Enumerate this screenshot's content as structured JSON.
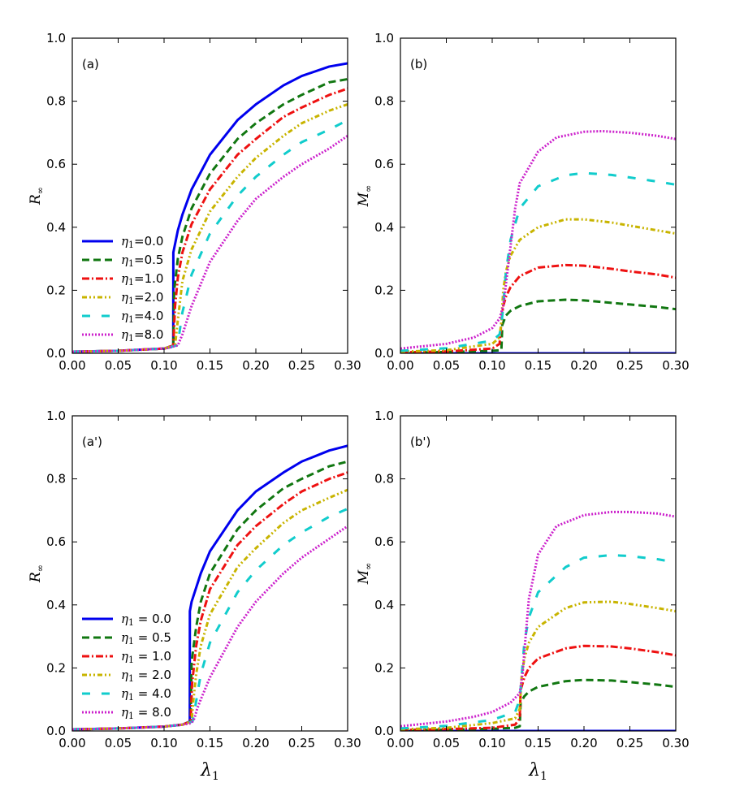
{
  "chart_data": [
    {
      "type": "line",
      "panel": "(a)",
      "xlabel": "",
      "ylabel": "R∞",
      "xlim": [
        0,
        0.3
      ],
      "ylim": [
        0,
        1.0
      ],
      "xticks": [
        "0.00",
        "0.05",
        "0.10",
        "0.15",
        "0.20",
        "0.25",
        "0.30"
      ],
      "yticks": [
        "0.0",
        "0.2",
        "0.4",
        "0.6",
        "0.8",
        "1.0"
      ],
      "legend": {
        "position": "lower-left",
        "sep": "="
      },
      "series": [
        {
          "name": "η1=0.0",
          "eta": "0.0",
          "style": "solid",
          "color": "#0000ee",
          "x": [
            0,
            0.05,
            0.1,
            0.108,
            0.11,
            0.1101,
            0.115,
            0.12,
            0.13,
            0.15,
            0.18,
            0.2,
            0.23,
            0.25,
            0.28,
            0.3
          ],
          "y": [
            0.005,
            0.008,
            0.015,
            0.02,
            0.025,
            0.32,
            0.39,
            0.44,
            0.52,
            0.63,
            0.74,
            0.79,
            0.85,
            0.88,
            0.91,
            0.92
          ]
        },
        {
          "name": "η1=0.5",
          "eta": "0.5",
          "style": "dashed",
          "color": "#117711",
          "x": [
            0,
            0.05,
            0.1,
            0.11,
            0.111,
            0.115,
            0.12,
            0.13,
            0.15,
            0.18,
            0.2,
            0.23,
            0.25,
            0.28,
            0.3
          ],
          "y": [
            0.005,
            0.008,
            0.015,
            0.025,
            0.2,
            0.3,
            0.37,
            0.46,
            0.57,
            0.68,
            0.73,
            0.79,
            0.82,
            0.86,
            0.87
          ]
        },
        {
          "name": "η1=1.0",
          "eta": "1.0",
          "style": "dashdot",
          "color": "#ee1111",
          "x": [
            0,
            0.05,
            0.1,
            0.11,
            0.112,
            0.115,
            0.12,
            0.13,
            0.15,
            0.18,
            0.2,
            0.23,
            0.25,
            0.28,
            0.3
          ],
          "y": [
            0.005,
            0.008,
            0.015,
            0.025,
            0.15,
            0.24,
            0.32,
            0.41,
            0.52,
            0.63,
            0.68,
            0.75,
            0.78,
            0.82,
            0.84
          ]
        },
        {
          "name": "η1=2.0",
          "eta": "2.0",
          "style": "dashdotdot",
          "color": "#c8b400",
          "x": [
            0,
            0.05,
            0.1,
            0.112,
            0.114,
            0.118,
            0.12,
            0.13,
            0.15,
            0.18,
            0.2,
            0.23,
            0.25,
            0.28,
            0.3
          ],
          "y": [
            0.005,
            0.008,
            0.015,
            0.025,
            0.08,
            0.18,
            0.23,
            0.33,
            0.45,
            0.56,
            0.62,
            0.69,
            0.73,
            0.77,
            0.79
          ]
        },
        {
          "name": "η1=4.0",
          "eta": "4.0",
          "style": "longdash",
          "color": "#11cccc",
          "x": [
            0,
            0.05,
            0.1,
            0.114,
            0.116,
            0.12,
            0.13,
            0.15,
            0.18,
            0.2,
            0.23,
            0.25,
            0.28,
            0.3
          ],
          "y": [
            0.005,
            0.008,
            0.015,
            0.025,
            0.05,
            0.13,
            0.25,
            0.38,
            0.5,
            0.56,
            0.63,
            0.67,
            0.71,
            0.74
          ]
        },
        {
          "name": "η1=8.0",
          "eta": "8.0",
          "style": "dotted",
          "color": "#cc22cc",
          "x": [
            0,
            0.05,
            0.1,
            0.115,
            0.12,
            0.13,
            0.15,
            0.18,
            0.2,
            0.23,
            0.25,
            0.28,
            0.3
          ],
          "y": [
            0.005,
            0.008,
            0.015,
            0.025,
            0.06,
            0.15,
            0.29,
            0.42,
            0.49,
            0.56,
            0.6,
            0.65,
            0.69
          ]
        }
      ]
    },
    {
      "type": "line",
      "panel": "(b)",
      "xlabel": "",
      "ylabel": "M∞",
      "xlim": [
        0,
        0.3
      ],
      "ylim": [
        0,
        1.0
      ],
      "xticks": [
        "0.00",
        "0.05",
        "0.10",
        "0.15",
        "0.20",
        "0.25",
        "0.30"
      ],
      "yticks": [
        "0.0",
        "0.2",
        "0.4",
        "0.6",
        "0.8",
        "1.0"
      ],
      "series": [
        {
          "name": "η1=0.0",
          "eta": "0.0",
          "style": "solid",
          "color": "#0000ee",
          "x": [
            0,
            0.3
          ],
          "y": [
            0.0,
            0.0
          ]
        },
        {
          "name": "η1=0.5",
          "eta": "0.5",
          "style": "dashed",
          "color": "#117711",
          "x": [
            0,
            0.05,
            0.1,
            0.11,
            0.111,
            0.115,
            0.12,
            0.13,
            0.15,
            0.18,
            0.2,
            0.23,
            0.25,
            0.28,
            0.3
          ],
          "y": [
            0.002,
            0.004,
            0.008,
            0.01,
            0.09,
            0.12,
            0.135,
            0.15,
            0.165,
            0.17,
            0.168,
            0.16,
            0.155,
            0.147,
            0.14
          ]
        },
        {
          "name": "η1=1.0",
          "eta": "1.0",
          "style": "dashdot",
          "color": "#ee1111",
          "x": [
            0,
            0.05,
            0.1,
            0.108,
            0.11,
            0.112,
            0.115,
            0.12,
            0.13,
            0.15,
            0.18,
            0.2,
            0.23,
            0.25,
            0.28,
            0.3
          ],
          "y": [
            0.003,
            0.006,
            0.015,
            0.03,
            0.1,
            0.15,
            0.18,
            0.21,
            0.245,
            0.272,
            0.28,
            0.278,
            0.268,
            0.26,
            0.25,
            0.24
          ]
        },
        {
          "name": "η1=2.0",
          "eta": "2.0",
          "style": "dashdotdot",
          "color": "#c8b400",
          "x": [
            0,
            0.05,
            0.1,
            0.108,
            0.11,
            0.112,
            0.115,
            0.12,
            0.13,
            0.15,
            0.18,
            0.2,
            0.23,
            0.25,
            0.28,
            0.3
          ],
          "y": [
            0.005,
            0.01,
            0.03,
            0.05,
            0.1,
            0.2,
            0.26,
            0.31,
            0.36,
            0.4,
            0.425,
            0.425,
            0.415,
            0.405,
            0.39,
            0.38
          ]
        },
        {
          "name": "η1=4.0",
          "eta": "4.0",
          "style": "longdash",
          "color": "#11cccc",
          "x": [
            0,
            0.05,
            0.1,
            0.108,
            0.11,
            0.112,
            0.115,
            0.12,
            0.13,
            0.15,
            0.18,
            0.2,
            0.23,
            0.25,
            0.28,
            0.3
          ],
          "y": [
            0.008,
            0.016,
            0.04,
            0.06,
            0.09,
            0.15,
            0.26,
            0.36,
            0.46,
            0.53,
            0.565,
            0.572,
            0.566,
            0.558,
            0.545,
            0.535
          ]
        },
        {
          "name": "η1=8.0",
          "eta": "8.0",
          "style": "dotted",
          "color": "#cc22cc",
          "x": [
            0,
            0.05,
            0.08,
            0.1,
            0.108,
            0.112,
            0.115,
            0.12,
            0.125,
            0.13,
            0.15,
            0.17,
            0.2,
            0.22,
            0.25,
            0.28,
            0.3
          ],
          "y": [
            0.015,
            0.03,
            0.05,
            0.08,
            0.11,
            0.15,
            0.22,
            0.34,
            0.46,
            0.54,
            0.64,
            0.685,
            0.703,
            0.705,
            0.7,
            0.69,
            0.68
          ]
        }
      ]
    },
    {
      "type": "line",
      "panel": "(a')",
      "xlabel": "λ1",
      "ylabel": "R∞",
      "xlim": [
        0,
        0.3
      ],
      "ylim": [
        0,
        1.0
      ],
      "xticks": [
        "0.00",
        "0.05",
        "0.10",
        "0.15",
        "0.20",
        "0.25",
        "0.30"
      ],
      "yticks": [
        "0.0",
        "0.2",
        "0.4",
        "0.6",
        "0.8",
        "1.0"
      ],
      "legend": {
        "position": "lower-left",
        "sep": " = "
      },
      "series": [
        {
          "name": "η1 = 0.0",
          "eta": "0.0",
          "style": "solid",
          "color": "#0000ee",
          "x": [
            0,
            0.05,
            0.1,
            0.12,
            0.128,
            0.1281,
            0.13,
            0.14,
            0.15,
            0.18,
            0.2,
            0.23,
            0.25,
            0.28,
            0.3
          ],
          "y": [
            0.005,
            0.008,
            0.014,
            0.02,
            0.03,
            0.38,
            0.41,
            0.5,
            0.57,
            0.7,
            0.76,
            0.82,
            0.855,
            0.89,
            0.905
          ]
        },
        {
          "name": "η1 = 0.5",
          "eta": "0.5",
          "style": "dashed",
          "color": "#117711",
          "x": [
            0,
            0.05,
            0.1,
            0.12,
            0.129,
            0.13,
            0.135,
            0.14,
            0.15,
            0.18,
            0.2,
            0.23,
            0.25,
            0.28,
            0.3
          ],
          "y": [
            0.005,
            0.008,
            0.014,
            0.02,
            0.03,
            0.22,
            0.33,
            0.41,
            0.5,
            0.64,
            0.7,
            0.77,
            0.8,
            0.84,
            0.855
          ]
        },
        {
          "name": "η1 = 1.0",
          "eta": "1.0",
          "style": "dashdot",
          "color": "#ee1111",
          "x": [
            0,
            0.05,
            0.1,
            0.12,
            0.129,
            0.1305,
            0.135,
            0.14,
            0.15,
            0.18,
            0.2,
            0.23,
            0.25,
            0.28,
            0.3
          ],
          "y": [
            0.005,
            0.008,
            0.014,
            0.02,
            0.03,
            0.15,
            0.27,
            0.35,
            0.45,
            0.59,
            0.65,
            0.72,
            0.76,
            0.8,
            0.82
          ]
        },
        {
          "name": "η1 = 2.0",
          "eta": "2.0",
          "style": "dashdotdot",
          "color": "#c8b400",
          "x": [
            0,
            0.05,
            0.1,
            0.12,
            0.13,
            0.132,
            0.135,
            0.14,
            0.15,
            0.18,
            0.2,
            0.23,
            0.25,
            0.28,
            0.3
          ],
          "y": [
            0.005,
            0.008,
            0.014,
            0.02,
            0.03,
            0.1,
            0.18,
            0.27,
            0.37,
            0.52,
            0.58,
            0.66,
            0.7,
            0.74,
            0.765
          ]
        },
        {
          "name": "η1 = 4.0",
          "eta": "4.0",
          "style": "longdash",
          "color": "#11cccc",
          "x": [
            0,
            0.05,
            0.1,
            0.12,
            0.131,
            0.133,
            0.137,
            0.14,
            0.15,
            0.18,
            0.2,
            0.23,
            0.25,
            0.28,
            0.3
          ],
          "y": [
            0.005,
            0.008,
            0.014,
            0.02,
            0.03,
            0.06,
            0.13,
            0.18,
            0.28,
            0.44,
            0.51,
            0.59,
            0.63,
            0.68,
            0.705
          ]
        },
        {
          "name": "η1 = 8.0",
          "eta": "8.0",
          "style": "dotted",
          "color": "#cc22cc",
          "x": [
            0,
            0.05,
            0.1,
            0.12,
            0.13,
            0.133,
            0.136,
            0.14,
            0.15,
            0.18,
            0.2,
            0.23,
            0.25,
            0.28,
            0.3
          ],
          "y": [
            0.005,
            0.008,
            0.014,
            0.02,
            0.025,
            0.04,
            0.07,
            0.1,
            0.17,
            0.33,
            0.41,
            0.5,
            0.55,
            0.61,
            0.65
          ]
        }
      ]
    },
    {
      "type": "line",
      "panel": "(b')",
      "xlabel": "λ1",
      "ylabel": "M∞",
      "xlim": [
        0,
        0.3
      ],
      "ylim": [
        0,
        1.0
      ],
      "xticks": [
        "0.00",
        "0.05",
        "0.10",
        "0.15",
        "0.20",
        "0.25",
        "0.30"
      ],
      "yticks": [
        "0.0",
        "0.2",
        "0.4",
        "0.6",
        "0.8",
        "1.0"
      ],
      "series": [
        {
          "name": "η1 = 0.0",
          "eta": "0.0",
          "style": "solid",
          "color": "#0000ee",
          "x": [
            0,
            0.3
          ],
          "y": [
            0.0,
            0.0
          ]
        },
        {
          "name": "η1 = 0.5",
          "eta": "0.5",
          "style": "dashed",
          "color": "#117711",
          "x": [
            0,
            0.05,
            0.1,
            0.125,
            0.13,
            0.131,
            0.135,
            0.14,
            0.15,
            0.18,
            0.2,
            0.23,
            0.25,
            0.28,
            0.3
          ],
          "y": [
            0.002,
            0.004,
            0.007,
            0.01,
            0.015,
            0.09,
            0.11,
            0.125,
            0.14,
            0.158,
            0.162,
            0.16,
            0.155,
            0.147,
            0.14
          ]
        },
        {
          "name": "η1 = 1.0",
          "eta": "1.0",
          "style": "dashdot",
          "color": "#ee1111",
          "x": [
            0,
            0.05,
            0.1,
            0.125,
            0.13,
            0.131,
            0.135,
            0.14,
            0.15,
            0.18,
            0.2,
            0.23,
            0.25,
            0.28,
            0.3
          ],
          "y": [
            0.003,
            0.006,
            0.01,
            0.02,
            0.04,
            0.13,
            0.17,
            0.2,
            0.23,
            0.262,
            0.27,
            0.268,
            0.262,
            0.25,
            0.24
          ]
        },
        {
          "name": "η1 = 2.0",
          "eta": "2.0",
          "style": "dashdotdot",
          "color": "#c8b400",
          "x": [
            0,
            0.05,
            0.1,
            0.125,
            0.13,
            0.132,
            0.135,
            0.14,
            0.15,
            0.18,
            0.2,
            0.23,
            0.25,
            0.28,
            0.3
          ],
          "y": [
            0.005,
            0.01,
            0.025,
            0.04,
            0.07,
            0.17,
            0.23,
            0.28,
            0.33,
            0.39,
            0.408,
            0.41,
            0.403,
            0.39,
            0.38
          ]
        },
        {
          "name": "η1 = 4.0",
          "eta": "4.0",
          "style": "longdash",
          "color": "#11cccc",
          "x": [
            0,
            0.05,
            0.1,
            0.125,
            0.13,
            0.132,
            0.135,
            0.14,
            0.15,
            0.18,
            0.2,
            0.23,
            0.25,
            0.28,
            0.3
          ],
          "y": [
            0.008,
            0.016,
            0.035,
            0.06,
            0.1,
            0.17,
            0.28,
            0.36,
            0.44,
            0.52,
            0.55,
            0.558,
            0.555,
            0.545,
            0.535
          ]
        },
        {
          "name": "η1 = 8.0",
          "eta": "8.0",
          "style": "dotted",
          "color": "#cc22cc",
          "x": [
            0,
            0.05,
            0.08,
            0.1,
            0.12,
            0.13,
            0.133,
            0.137,
            0.14,
            0.15,
            0.17,
            0.2,
            0.23,
            0.25,
            0.28,
            0.3
          ],
          "y": [
            0.015,
            0.03,
            0.045,
            0.06,
            0.09,
            0.12,
            0.18,
            0.32,
            0.42,
            0.56,
            0.65,
            0.685,
            0.695,
            0.695,
            0.69,
            0.68
          ]
        }
      ]
    }
  ]
}
